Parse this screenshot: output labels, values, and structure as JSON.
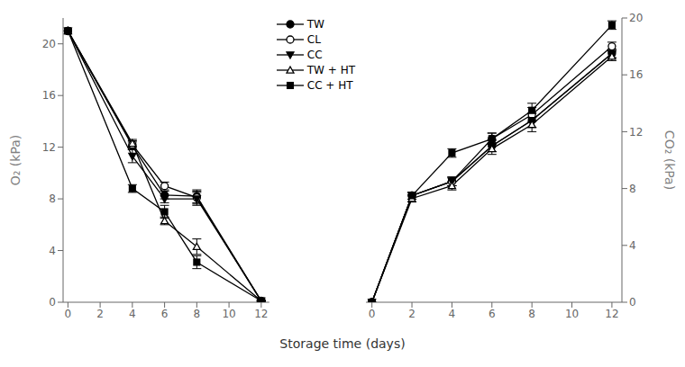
{
  "chart_data": [
    {
      "type": "line",
      "ylabel": "O₂ (kPa)",
      "xlabel": "Storage time (days)",
      "x": [
        0,
        4,
        6,
        8,
        12
      ],
      "xlim": [
        -0.3,
        12.5
      ],
      "xticks": [
        0,
        2,
        4,
        6,
        8,
        10,
        12
      ],
      "ylim": [
        0,
        22
      ],
      "yticks": [
        0,
        4,
        8,
        12,
        16,
        20
      ],
      "legend": "upper right",
      "series": [
        {
          "name": "TW",
          "color": "black",
          "marker": "circle",
          "values": [
            21.0,
            12.1,
            8.3,
            8.2,
            0.1
          ],
          "errors": [
            0.0,
            0.3,
            0.3,
            0.5,
            0.05
          ]
        },
        {
          "name": "CL",
          "color": "black",
          "marker": "circle_open",
          "values": [
            21.0,
            12.2,
            9.0,
            8.1,
            0.1
          ],
          "errors": [
            0.0,
            0.3,
            0.3,
            0.5,
            0.05
          ]
        },
        {
          "name": "CC",
          "color": "black",
          "marker": "triangle_down",
          "values": [
            21.0,
            11.3,
            8.0,
            8.0,
            0.1
          ],
          "errors": [
            0.0,
            0.5,
            0.3,
            0.5,
            0.05
          ]
        },
        {
          "name": "TW + HT",
          "color": "black",
          "marker": "triangle_up_open",
          "values": [
            21.0,
            12.3,
            6.3,
            4.3,
            0.1
          ],
          "errors": [
            0.0,
            0.3,
            0.3,
            0.6,
            0.05
          ]
        },
        {
          "name": "CC + HT",
          "color": "black",
          "marker": "square",
          "values": [
            21.0,
            8.8,
            7.0,
            3.1,
            0.1
          ],
          "errors": [
            0.0,
            0.3,
            0.5,
            0.5,
            0.05
          ]
        }
      ]
    },
    {
      "type": "line",
      "ylabel": "CO₂ (kPa)",
      "x": [
        0,
        2,
        4,
        6,
        8,
        12
      ],
      "xlim": [
        -0.3,
        12.5
      ],
      "xticks": [
        0,
        2,
        4,
        6,
        8,
        10,
        12
      ],
      "ylim": [
        0,
        20
      ],
      "yticks": [
        0,
        4,
        8,
        12,
        16,
        20
      ],
      "series": [
        {
          "color": "black",
          "marker": "circle",
          "values": [
            0.0,
            7.5,
            8.5,
            11.0,
            12.8,
            17.5
          ],
          "errors": [
            0.0,
            0.25,
            0.3,
            0.4,
            0.5,
            0.3
          ]
        },
        {
          "color": "black",
          "marker": "circle_open",
          "values": [
            0.0,
            7.5,
            8.5,
            11.5,
            13.2,
            18.0
          ],
          "errors": [
            0.0,
            0.25,
            0.3,
            0.4,
            0.5,
            0.3
          ]
        },
        {
          "color": "black",
          "marker": "triangle_down",
          "values": [
            0.0,
            7.5,
            8.5,
            11.0,
            12.8,
            17.5
          ],
          "errors": [
            0.0,
            0.25,
            0.3,
            0.4,
            0.5,
            0.3
          ]
        },
        {
          "color": "black",
          "marker": "triangle_up_open",
          "values": [
            0.0,
            7.3,
            8.2,
            10.8,
            12.5,
            17.3
          ],
          "errors": [
            0.0,
            0.25,
            0.3,
            0.4,
            0.5,
            0.3
          ]
        },
        {
          "color": "black",
          "marker": "square",
          "values": [
            0.0,
            7.5,
            10.5,
            11.5,
            13.5,
            19.5
          ],
          "errors": [
            0.0,
            0.25,
            0.3,
            0.4,
            0.5,
            0.3
          ]
        }
      ]
    }
  ]
}
